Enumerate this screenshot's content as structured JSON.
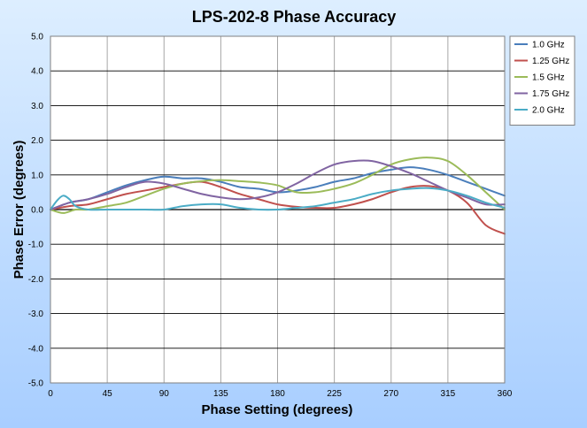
{
  "chart_data": {
    "type": "line",
    "title": "LPS-202-8 Phase Accuracy",
    "xlabel": "Phase Setting (degrees)",
    "ylabel": "Phase Error (degrees)",
    "xlim": [
      0,
      360
    ],
    "ylim": [
      -5,
      5
    ],
    "x_ticks": [
      0,
      45,
      90,
      135,
      180,
      225,
      270,
      315,
      360
    ],
    "y_ticks": [
      5.0,
      4.0,
      3.0,
      2.0,
      1.0,
      0.0,
      -1.0,
      -2.0,
      -3.0,
      -4.0,
      -5.0
    ],
    "y_tick_labels": [
      "5.0",
      "4.0",
      "3.0",
      "2.0",
      "1.0",
      "0.0",
      "-1.0",
      "-2.0",
      "-3.0",
      "-4.0",
      "-5.0"
    ],
    "grid": true,
    "legend_position": "top-right",
    "series": [
      {
        "name": "1.0 GHz",
        "color": "#4a7ebb",
        "x": [
          0,
          15,
          30,
          45,
          60,
          75,
          90,
          105,
          120,
          135,
          150,
          165,
          180,
          195,
          210,
          225,
          240,
          255,
          270,
          285,
          300,
          315,
          330,
          345,
          360
        ],
        "y": [
          0.0,
          0.2,
          0.3,
          0.5,
          0.7,
          0.85,
          0.95,
          0.9,
          0.9,
          0.8,
          0.65,
          0.6,
          0.5,
          0.55,
          0.65,
          0.8,
          0.9,
          1.05,
          1.15,
          1.22,
          1.15,
          1.0,
          0.8,
          0.6,
          0.4
        ]
      },
      {
        "name": "1.25 GHz",
        "color": "#c0504d",
        "x": [
          0,
          15,
          30,
          45,
          60,
          75,
          90,
          105,
          120,
          135,
          150,
          165,
          180,
          195,
          210,
          225,
          240,
          255,
          270,
          285,
          300,
          315,
          330,
          345,
          360
        ],
        "y": [
          0.0,
          0.1,
          0.15,
          0.3,
          0.45,
          0.55,
          0.65,
          0.75,
          0.8,
          0.65,
          0.45,
          0.3,
          0.15,
          0.08,
          0.05,
          0.05,
          0.15,
          0.3,
          0.5,
          0.65,
          0.68,
          0.55,
          0.2,
          -0.45,
          -0.7
        ]
      },
      {
        "name": "1.5 GHz",
        "color": "#9bbb59",
        "x": [
          0,
          10,
          20,
          30,
          45,
          60,
          75,
          90,
          105,
          120,
          135,
          150,
          165,
          180,
          195,
          210,
          225,
          240,
          255,
          270,
          285,
          300,
          315,
          330,
          345,
          360
        ],
        "y": [
          0.0,
          -0.1,
          0.0,
          0.0,
          0.1,
          0.2,
          0.4,
          0.6,
          0.75,
          0.82,
          0.85,
          0.82,
          0.78,
          0.7,
          0.5,
          0.5,
          0.6,
          0.75,
          1.0,
          1.3,
          1.45,
          1.5,
          1.4,
          1.0,
          0.5,
          0.0
        ]
      },
      {
        "name": "1.75 GHz",
        "color": "#8064a2",
        "x": [
          0,
          15,
          30,
          45,
          60,
          75,
          90,
          105,
          120,
          135,
          150,
          165,
          180,
          195,
          210,
          225,
          240,
          255,
          270,
          285,
          300,
          315,
          330,
          345,
          360
        ],
        "y": [
          0.0,
          0.2,
          0.3,
          0.45,
          0.65,
          0.8,
          0.75,
          0.6,
          0.45,
          0.35,
          0.3,
          0.35,
          0.5,
          0.75,
          1.05,
          1.3,
          1.4,
          1.4,
          1.25,
          1.05,
          0.8,
          0.55,
          0.35,
          0.15,
          0.15
        ]
      },
      {
        "name": "2.0 GHz",
        "color": "#4bacc6",
        "x": [
          0,
          5,
          10,
          15,
          20,
          30,
          45,
          60,
          75,
          90,
          105,
          120,
          135,
          150,
          165,
          180,
          195,
          210,
          225,
          240,
          255,
          270,
          285,
          300,
          315,
          330,
          345,
          360
        ],
        "y": [
          0.0,
          0.25,
          0.4,
          0.3,
          0.1,
          0.0,
          0.0,
          0.0,
          0.0,
          0.0,
          0.1,
          0.15,
          0.15,
          0.05,
          0.0,
          0.0,
          0.05,
          0.1,
          0.2,
          0.3,
          0.45,
          0.55,
          0.6,
          0.62,
          0.55,
          0.4,
          0.2,
          0.05
        ]
      }
    ]
  }
}
